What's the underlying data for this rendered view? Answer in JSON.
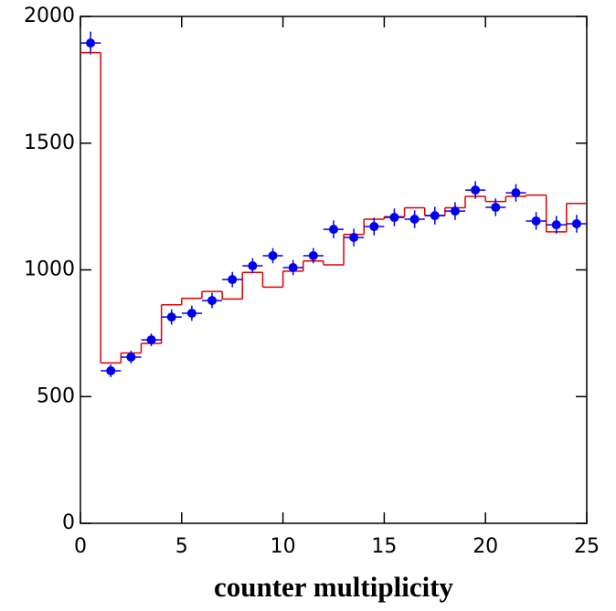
{
  "chart_data": {
    "type": "histogram",
    "xlabel": "counter multiplicity",
    "bins": [
      0,
      1,
      2,
      3,
      4,
      5,
      6,
      7,
      8,
      9,
      10,
      11,
      12,
      13,
      14,
      15,
      16,
      17,
      18,
      19,
      20,
      21,
      22,
      23,
      24,
      25
    ],
    "values": [
      1857,
      633,
      672,
      710,
      862,
      888,
      915,
      885,
      990,
      932,
      995,
      1035,
      1020,
      1140,
      1200,
      1210,
      1245,
      1215,
      1245,
      1290,
      1270,
      1290,
      1295,
      1150,
      1262
    ],
    "color": "#e00000",
    "points": {
      "color": "#0000ee",
      "x": [
        0.5,
        1.5,
        2.5,
        3.5,
        4.5,
        5.5,
        6.5,
        7.5,
        8.5,
        9.5,
        10.5,
        11.5,
        12.5,
        13.5,
        14.5,
        15.5,
        16.5,
        17.5,
        18.5,
        19.5,
        20.5,
        21.5,
        22.5,
        23.5,
        24.5
      ],
      "values": [
        1895,
        602,
        656,
        724,
        814,
        829,
        879,
        962,
        1016,
        1056,
        1009,
        1056,
        1160,
        1128,
        1171,
        1207,
        1200,
        1214,
        1232,
        1315,
        1247,
        1304,
        1193,
        1178,
        1182
      ],
      "yerr": [
        45,
        25,
        25,
        25,
        30,
        30,
        30,
        30,
        30,
        30,
        30,
        30,
        35,
        35,
        35,
        35,
        35,
        35,
        35,
        35,
        35,
        35,
        35,
        35,
        35
      ],
      "xerr": 0.5
    },
    "xlim": [
      0,
      25
    ],
    "ylim": [
      0,
      2000
    ],
    "xticks": [
      0,
      5,
      10,
      15,
      20,
      25
    ],
    "yticks": [
      0,
      500,
      1000,
      1500,
      2000
    ]
  }
}
